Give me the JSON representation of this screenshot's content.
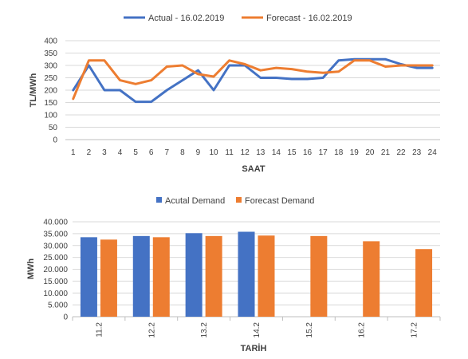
{
  "colors": {
    "actual": "#4472C4",
    "forecast": "#ED7D31"
  },
  "chart_data": [
    {
      "type": "line",
      "title": "",
      "xlabel": "SAAT",
      "ylabel": "TL/MWh",
      "ylim": [
        0,
        400
      ],
      "yticks": [
        "0",
        "50",
        "100",
        "150",
        "200",
        "250",
        "300",
        "350",
        "400"
      ],
      "x": [
        "1",
        "2",
        "3",
        "4",
        "5",
        "6",
        "7",
        "8",
        "9",
        "10",
        "11",
        "12",
        "13",
        "14",
        "15",
        "16",
        "17",
        "18",
        "19",
        "20",
        "21",
        "22",
        "23",
        "24"
      ],
      "grid": true,
      "legend": "top-center",
      "series": [
        {
          "name": "Actual - 16.02.2019",
          "color": "#4472C4",
          "values": [
            200,
            300,
            200,
            200,
            153,
            153,
            200,
            240,
            280,
            200,
            300,
            300,
            250,
            250,
            245,
            245,
            250,
            320,
            325,
            325,
            325,
            305,
            290,
            290
          ]
        },
        {
          "name": "Forecast - 16.02.2019",
          "color": "#ED7D31",
          "values": [
            165,
            320,
            320,
            240,
            225,
            240,
            295,
            300,
            265,
            255,
            320,
            305,
            280,
            290,
            285,
            275,
            270,
            275,
            320,
            320,
            295,
            300,
            300,
            300
          ]
        }
      ]
    },
    {
      "type": "bar",
      "title": "",
      "xlabel": "TARİH",
      "ylabel": "MWh",
      "ylim": [
        0,
        40000
      ],
      "yticks": [
        "0",
        "5.000",
        "10.000",
        "15.000",
        "20.000",
        "25.000",
        "30.000",
        "35.000",
        "40.000"
      ],
      "categories": [
        "11.2",
        "12.2",
        "13.2",
        "14.2",
        "15.2",
        "16.2",
        "17.2"
      ],
      "grid": true,
      "legend": "top-center",
      "series": [
        {
          "name": "Acutal Demand",
          "color": "#4472C4",
          "values": [
            33500,
            34000,
            35200,
            35800,
            null,
            null,
            null
          ]
        },
        {
          "name": "Forecast Demand",
          "color": "#ED7D31",
          "values": [
            32500,
            33500,
            34000,
            34200,
            34000,
            31800,
            28500
          ]
        }
      ]
    }
  ]
}
